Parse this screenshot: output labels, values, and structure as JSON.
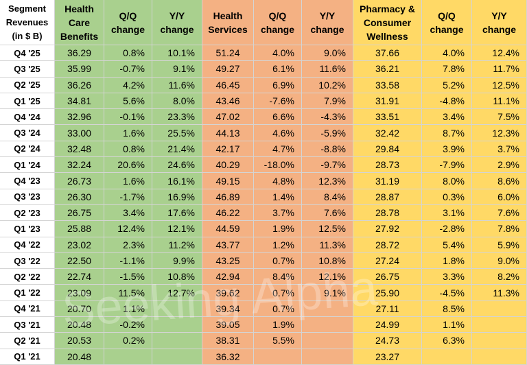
{
  "table": {
    "header": [
      "Segment Revenues (in $ B)",
      "Health Care Benefits",
      "Q/Q change",
      "Y/Y change",
      "Health Services",
      "Q/Q change",
      "Y/Y change",
      "Pharmacy & Consumer Wellness",
      "Q/Q change",
      "Y/Y change"
    ],
    "rows": [
      [
        "Q4 '25",
        "36.29",
        "0.8%",
        "10.1%",
        "51.24",
        "4.0%",
        "9.0%",
        "37.66",
        "4.0%",
        "12.4%"
      ],
      [
        "Q3 '25",
        "35.99",
        "-0.7%",
        "9.1%",
        "49.27",
        "6.1%",
        "11.6%",
        "36.21",
        "7.8%",
        "11.7%"
      ],
      [
        "Q2 '25",
        "36.26",
        "4.2%",
        "11.6%",
        "46.45",
        "6.9%",
        "10.2%",
        "33.58",
        "5.2%",
        "12.5%"
      ],
      [
        "Q1 '25",
        "34.81",
        "5.6%",
        "8.0%",
        "43.46",
        "-7.6%",
        "7.9%",
        "31.91",
        "-4.8%",
        "11.1%"
      ],
      [
        "Q4 '24",
        "32.96",
        "-0.1%",
        "23.3%",
        "47.02",
        "6.6%",
        "-4.3%",
        "33.51",
        "3.4%",
        "7.5%"
      ],
      [
        "Q3 '24",
        "33.00",
        "1.6%",
        "25.5%",
        "44.13",
        "4.6%",
        "-5.9%",
        "32.42",
        "8.7%",
        "12.3%"
      ],
      [
        "Q2 '24",
        "32.48",
        "0.8%",
        "21.4%",
        "42.17",
        "4.7%",
        "-8.8%",
        "29.84",
        "3.9%",
        "3.7%"
      ],
      [
        "Q1 '24",
        "32.24",
        "20.6%",
        "24.6%",
        "40.29",
        "-18.0%",
        "-9.7%",
        "28.73",
        "-7.9%",
        "2.9%"
      ],
      [
        "Q4 '23",
        "26.73",
        "1.6%",
        "16.1%",
        "49.15",
        "4.8%",
        "12.3%",
        "31.19",
        "8.0%",
        "8.6%"
      ],
      [
        "Q3 '23",
        "26.30",
        "-1.7%",
        "16.9%",
        "46.89",
        "1.4%",
        "8.4%",
        "28.87",
        "0.3%",
        "6.0%"
      ],
      [
        "Q2 '23",
        "26.75",
        "3.4%",
        "17.6%",
        "46.22",
        "3.7%",
        "7.6%",
        "28.78",
        "3.1%",
        "7.6%"
      ],
      [
        "Q1 '23",
        "25.88",
        "12.4%",
        "12.1%",
        "44.59",
        "1.9%",
        "12.5%",
        "27.92",
        "-2.8%",
        "7.8%"
      ],
      [
        "Q4 '22",
        "23.02",
        "2.3%",
        "11.2%",
        "43.77",
        "1.2%",
        "11.3%",
        "28.72",
        "5.4%",
        "5.9%"
      ],
      [
        "Q3 '22",
        "22.50",
        "-1.1%",
        "9.9%",
        "43.25",
        "0.7%",
        "10.8%",
        "27.24",
        "1.8%",
        "9.0%"
      ],
      [
        "Q2 '22",
        "22.74",
        "-1.5%",
        "10.8%",
        "42.94",
        "8.4%",
        "12.1%",
        "26.75",
        "3.3%",
        "8.2%"
      ],
      [
        "Q1 '22",
        "23.09",
        "11.5%",
        "12.7%",
        "39.62",
        "0.7%",
        "9.1%",
        "25.90",
        "-4.5%",
        "11.3%"
      ],
      [
        "Q4 '21",
        "20.70",
        "1.1%",
        null,
        "39.34",
        "0.7%",
        null,
        "27.11",
        "8.5%",
        null
      ],
      [
        "Q3 '21",
        "20.48",
        "-0.2%",
        null,
        "39.05",
        "1.9%",
        null,
        "24.99",
        "1.1%",
        null
      ],
      [
        "Q2 '21",
        "20.53",
        "0.2%",
        null,
        "38.31",
        "5.5%",
        null,
        "24.73",
        "6.3%",
        null
      ],
      [
        "Q1 '21",
        "20.48",
        null,
        null,
        "36.32",
        null,
        null,
        "23.27",
        null,
        null
      ]
    ]
  },
  "watermark": "Seeking Alpha"
}
